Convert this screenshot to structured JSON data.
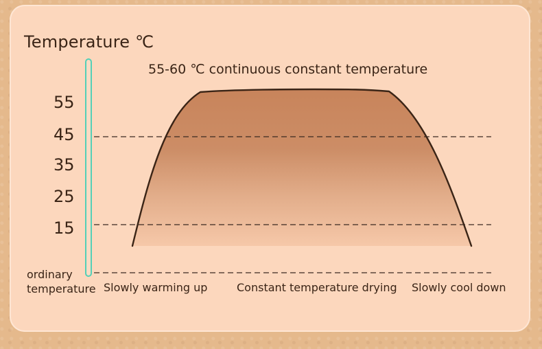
{
  "chart_data": {
    "type": "area",
    "ylabel": "Temperature ℃",
    "y_ticks": [
      "55",
      "45",
      "35",
      "25",
      "15"
    ],
    "y_baseline_label_lines": [
      "ordinary",
      "temperature"
    ],
    "annotation": "55-60 ℃ continuous constant temperature",
    "x_labels": [
      "Slowly warming up",
      "Constant temperature drying",
      "Slowly cool down"
    ],
    "reference_lines": [
      45,
      15,
      "ordinary temperature"
    ],
    "curve_profile": {
      "start": "ordinary temperature",
      "plateau_range": "55-60 ℃",
      "end": "ordinary temperature"
    },
    "colors": {
      "curve": "#3a2416",
      "fill_top": "#c8845b",
      "fill_bottom": "#f8d0b0",
      "guide_line": "#3b2a21",
      "rail": "#53d0b7"
    }
  }
}
